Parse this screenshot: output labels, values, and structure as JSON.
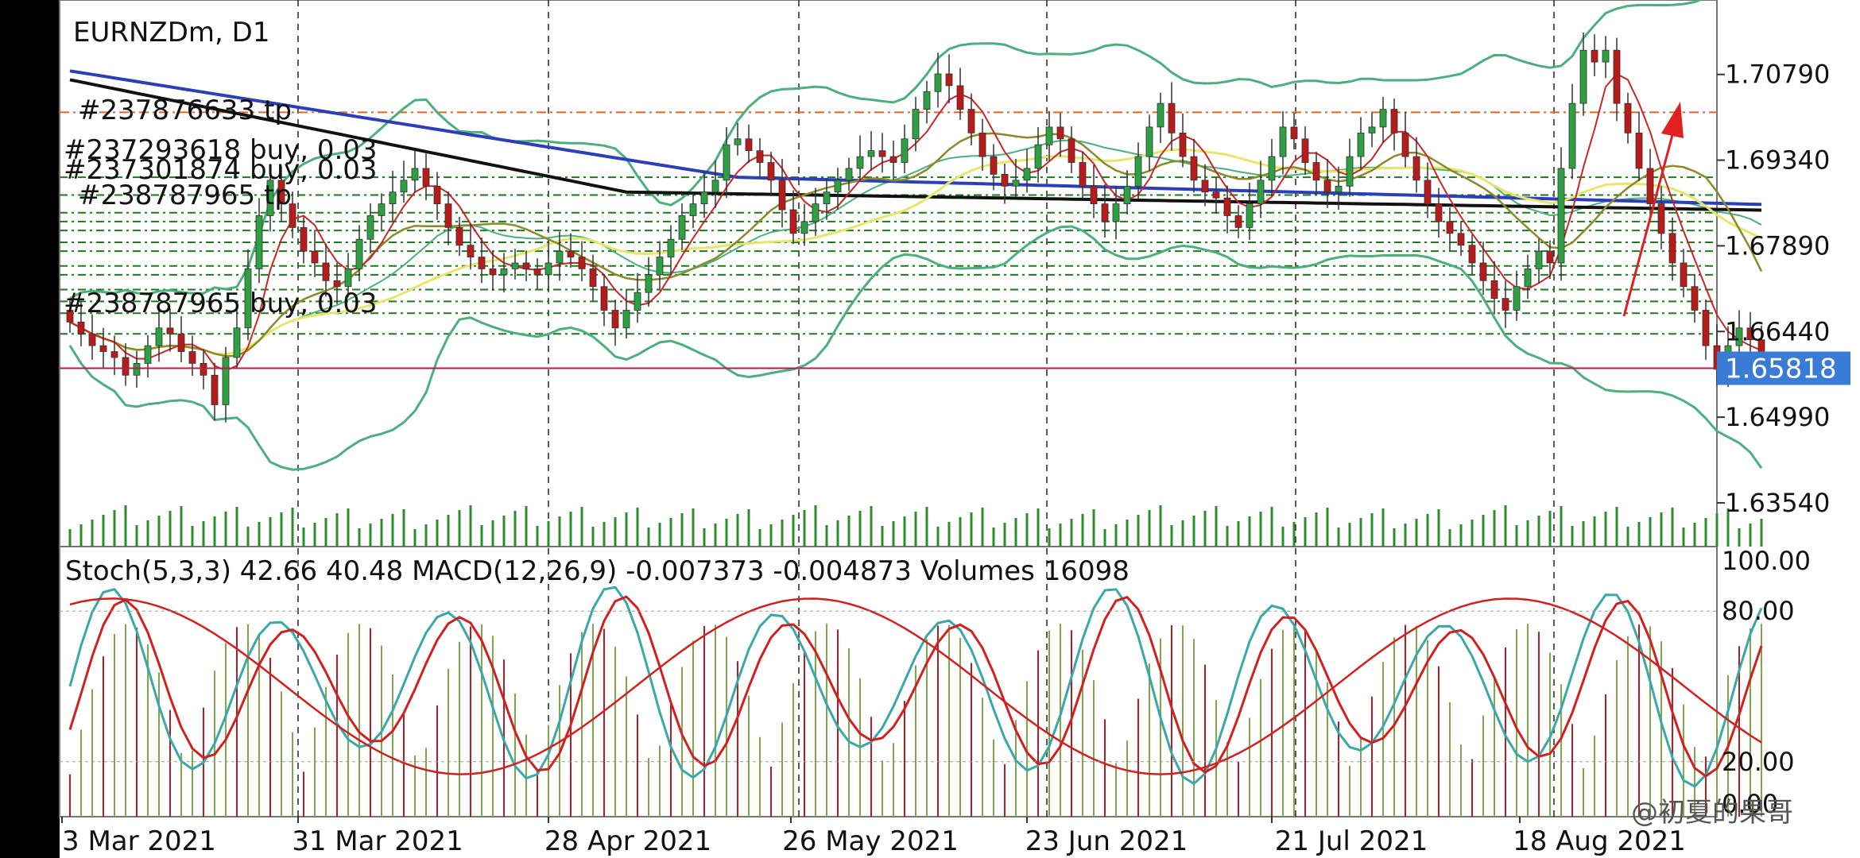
{
  "symbol_title": "EURNZDm, D1",
  "indicator_title": "Stoch(5,3,3) 42.66 40.48 MACD(12,26,9) -0.007373 -0.004873 Volumes 16098",
  "current_price": "1.65818",
  "watermark": "@初夏的果哥",
  "order_labels": [
    "#237876633 tp",
    "#237293618 buy, 0.03",
    "#237301874 buy, 0.03",
    "#238787965 tp",
    "#238787965 buy, 0.03"
  ],
  "colors": {
    "bull_candle": "#2ea043",
    "bear_candle": "#b71c1c",
    "bollinger": "#4caf7d",
    "ma_long_blue": "#2b3fb8",
    "ma_long_black": "#111111",
    "ma_yellow": "#e8e66a",
    "ma_olive": "#8a8a2a",
    "ma_red": "#c62828",
    "tp_line": "#d9682b",
    "order_lines": "#1b7a1b",
    "current_price_line": "#b0204a",
    "price_badge": "#3a7bd5",
    "arrow": "#e02020",
    "stoch_main": "#3aa8a8",
    "stoch_signal": "#d02020"
  },
  "chart_data": [
    {
      "type": "candlestick",
      "title": "EURNZDm, D1",
      "y_ticks": [
        "1.70790",
        "1.69340",
        "1.67890",
        "1.66440",
        "1.64990",
        "1.63540"
      ],
      "x_ticks": [
        "3 Mar 2021",
        "31 Mar 2021",
        "28 Apr 2021",
        "26 May 2021",
        "23 Jun 2021",
        "21 Jul 2021",
        "18 Aug 2021"
      ],
      "ylim": [
        1.628,
        1.7205
      ],
      "current_price": 1.65818,
      "tp_line_price": 1.7015,
      "order_line_prices": [
        1.6905,
        1.6875,
        1.6845,
        1.683,
        1.6815,
        1.6795,
        1.678,
        1.6755,
        1.674,
        1.6715,
        1.6695,
        1.6675,
        1.664
      ],
      "close": [
        1.666,
        1.664,
        1.662,
        1.661,
        1.66,
        1.657,
        1.659,
        1.662,
        1.665,
        1.664,
        1.661,
        1.659,
        1.657,
        1.652,
        1.66,
        1.665,
        1.675,
        1.684,
        1.69,
        1.686,
        1.682,
        1.678,
        1.676,
        1.673,
        1.672,
        1.675,
        1.68,
        1.684,
        1.686,
        1.688,
        1.69,
        1.692,
        1.689,
        1.686,
        1.682,
        1.679,
        1.677,
        1.675,
        1.674,
        1.675,
        1.676,
        1.675,
        1.674,
        1.676,
        1.678,
        1.677,
        1.675,
        1.672,
        1.668,
        1.665,
        1.668,
        1.671,
        1.674,
        1.677,
        1.68,
        1.684,
        1.686,
        1.688,
        1.69,
        1.696,
        1.697,
        1.695,
        1.693,
        1.69,
        1.685,
        1.681,
        1.683,
        1.686,
        1.688,
        1.69,
        1.692,
        1.694,
        1.695,
        1.694,
        1.693,
        1.697,
        1.702,
        1.705,
        1.708,
        1.706,
        1.702,
        1.698,
        1.694,
        1.691,
        1.689,
        1.69,
        1.692,
        1.696,
        1.699,
        1.697,
        1.693,
        1.689,
        1.686,
        1.683,
        1.686,
        1.689,
        1.694,
        1.699,
        1.703,
        1.698,
        1.694,
        1.69,
        1.688,
        1.687,
        1.684,
        1.682,
        1.686,
        1.69,
        1.694,
        1.699,
        1.697,
        1.693,
        1.69,
        1.688,
        1.689,
        1.694,
        1.698,
        1.699,
        1.702,
        1.698,
        1.694,
        1.69,
        1.686,
        1.683,
        1.681,
        1.679,
        1.676,
        1.673,
        1.67,
        1.668,
        1.672,
        1.675,
        1.678,
        1.676,
        1.692,
        1.703,
        1.712,
        1.71,
        1.712,
        1.703,
        1.698,
        1.692,
        1.686,
        1.681,
        1.676,
        1.672,
        1.668,
        1.662,
        1.658,
        1.662,
        1.665,
        1.663,
        1.658
      ],
      "volumes": "per-bar volume histogram (approx.)",
      "indicators": [
        "Bollinger Bands",
        "Moving averages (blue, black, yellow, olive, red)"
      ]
    },
    {
      "type": "line",
      "title": "Stoch(5,3,3) 42.66 40.48 MACD(12,26,9) -0.007373 -0.004873 Volumes 16098",
      "y_ticks": [
        "100.00",
        "80.00",
        "20.00",
        "0.00"
      ],
      "ylim": [
        0,
        100
      ],
      "series": [
        {
          "name": "Stoch(5,3,3)",
          "last_value": 42.66
        },
        {
          "name": "Stoch signal",
          "last_value": 40.48
        },
        {
          "name": "MACD(12,26,9)",
          "last_value": -0.007373
        },
        {
          "name": "MACD signal",
          "last_value": -0.004873
        },
        {
          "name": "Volumes",
          "last_value": 16098
        }
      ]
    }
  ]
}
